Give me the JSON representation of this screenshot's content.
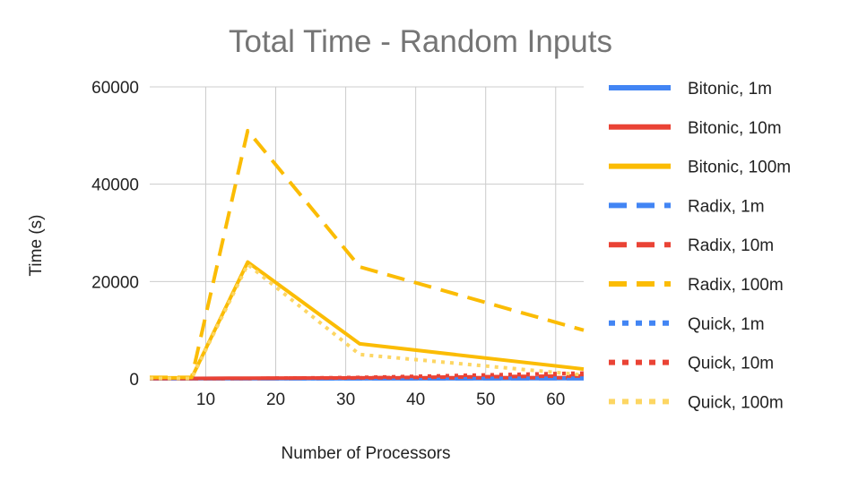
{
  "chart_data": {
    "type": "line",
    "title": "Total Time - Random Inputs",
    "xlabel": "Number of Processors",
    "ylabel": "Time (s)",
    "xlim": [
      2,
      64
    ],
    "ylim": [
      0,
      60000
    ],
    "xticks": [
      10,
      20,
      30,
      40,
      50,
      60
    ],
    "yticks": [
      0,
      20000,
      40000,
      60000
    ],
    "grid": true,
    "legend_position": "right",
    "x": [
      2,
      4,
      8,
      16,
      32,
      64
    ],
    "series": [
      {
        "name": "Bitonic, 1m",
        "color": "#4285f4",
        "dash": "solid",
        "values": [
          20,
          15,
          10,
          10,
          20,
          30
        ]
      },
      {
        "name": "Bitonic, 10m",
        "color": "#ea4335",
        "dash": "solid",
        "values": [
          150,
          120,
          100,
          150,
          200,
          250
        ]
      },
      {
        "name": "Bitonic, 100m",
        "color": "#fbbc04",
        "dash": "solid",
        "values": [
          200,
          200,
          200,
          24000,
          7200,
          2000
        ]
      },
      {
        "name": "Radix, 1m",
        "color": "#4285f4",
        "dash": "dash",
        "values": [
          10,
          10,
          10,
          10,
          20,
          50
        ]
      },
      {
        "name": "Radix, 10m",
        "color": "#ea4335",
        "dash": "dash",
        "values": [
          50,
          50,
          50,
          100,
          200,
          600
        ]
      },
      {
        "name": "Radix, 100m",
        "color": "#fbbc04",
        "dash": "dash",
        "values": [
          300,
          300,
          300,
          51000,
          23000,
          10000
        ]
      },
      {
        "name": "Quick, 1m",
        "color": "#4285f4",
        "dash": "dot",
        "values": [
          20,
          20,
          20,
          30,
          60,
          120
        ]
      },
      {
        "name": "Quick, 10m",
        "color": "#ea4335",
        "dash": "dot",
        "values": [
          40,
          40,
          40,
          80,
          300,
          1200
        ]
      },
      {
        "name": "Quick, 100m",
        "color": "#fdd663",
        "dash": "dot",
        "values": [
          100,
          100,
          100,
          23500,
          5000,
          800
        ]
      }
    ]
  }
}
